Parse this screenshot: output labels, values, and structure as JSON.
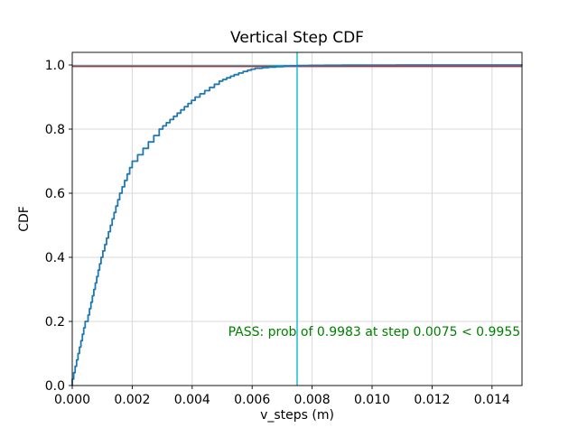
{
  "figure": {
    "title": "Vertical Step CDF",
    "xlabel": "v_steps (m)",
    "ylabel": "CDF",
    "pass_text": "PASS: prob of 0.9983 at step 0.0075 < 0.9955"
  },
  "chart_data": {
    "type": "line",
    "subtype": "empirical-step-cdf",
    "title": "Vertical Step CDF",
    "xlabel": "v_steps (m)",
    "ylabel": "CDF",
    "xlim": [
      0.0,
      0.015
    ],
    "ylim": [
      0.0,
      1.04
    ],
    "grid": true,
    "grid_color": "#d9d9d9",
    "background": "#ffffff",
    "xticks": [
      {
        "v": 0.0,
        "label": "0.000"
      },
      {
        "v": 0.002,
        "label": "0.002"
      },
      {
        "v": 0.004,
        "label": "0.004"
      },
      {
        "v": 0.006,
        "label": "0.006"
      },
      {
        "v": 0.008,
        "label": "0.008"
      },
      {
        "v": 0.01,
        "label": "0.010"
      },
      {
        "v": 0.012,
        "label": "0.012"
      },
      {
        "v": 0.014,
        "label": "0.014"
      }
    ],
    "yticks": [
      {
        "v": 0.0,
        "label": "0.0"
      },
      {
        "v": 0.2,
        "label": "0.2"
      },
      {
        "v": 0.4,
        "label": "0.4"
      },
      {
        "v": 0.6,
        "label": "0.6"
      },
      {
        "v": 0.8,
        "label": "0.8"
      },
      {
        "v": 1.0,
        "label": "1.0"
      }
    ],
    "series": [
      {
        "name": "prob-at-step-hline",
        "type": "hline",
        "y": 0.9983,
        "color": "#17becf",
        "linewidth": 1.5
      },
      {
        "name": "threshold-hline",
        "type": "hline",
        "y": 0.9955,
        "color": "#d62728",
        "linewidth": 1.5
      },
      {
        "name": "step-vline",
        "type": "vline",
        "x": 0.0075,
        "color": "#17becf",
        "linewidth": 1.5
      },
      {
        "name": "vertical-step-cdf",
        "type": "step",
        "color": "#1f77b4",
        "linewidth": 1.8,
        "points": [
          [
            0.0,
            0.02
          ],
          [
            4.8e-05,
            0.04
          ],
          [
            9.6e-05,
            0.06
          ],
          [
            0.000144,
            0.08
          ],
          [
            0.000192,
            0.1
          ],
          [
            0.00024,
            0.12
          ],
          [
            0.000288,
            0.14
          ],
          [
            0.000336,
            0.16
          ],
          [
            0.000384,
            0.18
          ],
          [
            0.000432,
            0.2
          ],
          [
            0.000528,
            0.22
          ],
          [
            0.000576,
            0.24
          ],
          [
            0.000624,
            0.26
          ],
          [
            0.000672,
            0.28
          ],
          [
            0.00072,
            0.3
          ],
          [
            0.000768,
            0.32
          ],
          [
            0.000816,
            0.34
          ],
          [
            0.000864,
            0.36
          ],
          [
            0.000912,
            0.38
          ],
          [
            0.00096,
            0.4
          ],
          [
            0.001022,
            0.42
          ],
          [
            0.001084,
            0.44
          ],
          [
            0.001146,
            0.46
          ],
          [
            0.001208,
            0.48
          ],
          [
            0.00127,
            0.5
          ],
          [
            0.001332,
            0.52
          ],
          [
            0.001394,
            0.54
          ],
          [
            0.001456,
            0.56
          ],
          [
            0.001518,
            0.58
          ],
          [
            0.00158,
            0.6
          ],
          [
            0.001664,
            0.62
          ],
          [
            0.001748,
            0.64
          ],
          [
            0.001832,
            0.66
          ],
          [
            0.001916,
            0.68
          ],
          [
            0.002,
            0.7
          ],
          [
            0.00218,
            0.72
          ],
          [
            0.00236,
            0.74
          ],
          [
            0.00254,
            0.76
          ],
          [
            0.00272,
            0.78
          ],
          [
            0.0029,
            0.8
          ],
          [
            0.00302,
            0.81
          ],
          [
            0.00314,
            0.82
          ],
          [
            0.00326,
            0.83
          ],
          [
            0.00338,
            0.84
          ],
          [
            0.0035,
            0.85
          ],
          [
            0.00362,
            0.86
          ],
          [
            0.00374,
            0.87
          ],
          [
            0.00386,
            0.88
          ],
          [
            0.00398,
            0.89
          ],
          [
            0.0041,
            0.9
          ],
          [
            0.00426,
            0.91
          ],
          [
            0.00442,
            0.92
          ],
          [
            0.00458,
            0.93
          ],
          [
            0.00474,
            0.94
          ],
          [
            0.0049,
            0.95
          ],
          [
            0.00502,
            0.955
          ],
          [
            0.00515,
            0.96
          ],
          [
            0.00528,
            0.965
          ],
          [
            0.0054,
            0.97
          ],
          [
            0.00555,
            0.975
          ],
          [
            0.0057,
            0.98
          ],
          [
            0.00585,
            0.984
          ],
          [
            0.00597,
            0.987
          ],
          [
            0.0061,
            0.99
          ],
          [
            0.00635,
            0.992
          ],
          [
            0.00655,
            0.9935
          ],
          [
            0.0068,
            0.995
          ],
          [
            0.00705,
            0.9965
          ],
          [
            0.00728,
            0.9975
          ],
          [
            0.0075,
            0.9983
          ],
          [
            0.0079,
            0.9988
          ],
          [
            0.0084,
            0.9992
          ],
          [
            0.009,
            0.9995
          ],
          [
            0.0098,
            0.9997
          ],
          [
            0.0108,
            0.9999
          ],
          [
            0.012,
            1.0
          ],
          [
            0.015,
            1.0
          ]
        ]
      }
    ],
    "annotations": [
      {
        "name": "pass-annotation",
        "text": "PASS: prob of 0.9983 at step 0.0075 < 0.9955",
        "x": 0.0052,
        "y": 0.155,
        "color": "#008000",
        "ha": "left"
      }
    ],
    "legend": null
  }
}
